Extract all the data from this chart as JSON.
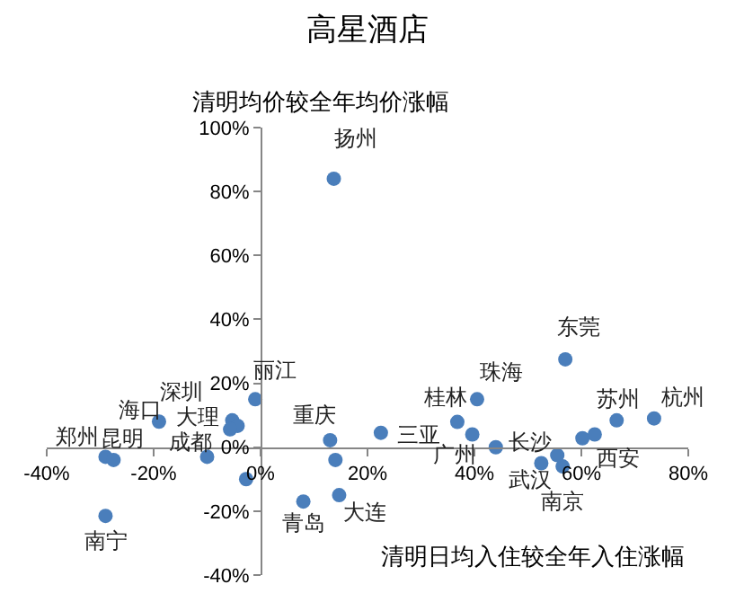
{
  "chart_data": {
    "type": "scatter",
    "title": "高星酒店",
    "xlabel": "清明日均入住较全年入住涨幅",
    "ylabel": "清明均价较全年均价涨幅",
    "x": [
      13.7,
      -29,
      -27.5,
      -29,
      -19,
      -5.3,
      -4.3,
      -10,
      -1,
      13,
      8,
      14.7,
      22.5,
      39.6,
      36.8,
      40.5,
      44,
      57,
      52.5,
      56.5,
      62.5,
      66.6,
      73.6,
      -5.7,
      -2.7,
      14,
      55.5,
      60.2
    ],
    "values": [
      84,
      -3,
      -4,
      -21.5,
      8,
      8.4,
      6.7,
      -3,
      15,
      2.2,
      -17,
      -15,
      4.5,
      4,
      7.9,
      15,
      0,
      27.5,
      -5,
      -6,
      4,
      8.4,
      9,
      5.6,
      -10,
      -4,
      -2.5,
      2.8
    ],
    "color": "#4a7ebb",
    "marker": "circle",
    "xlim": [
      -40,
      80
    ],
    "ylim": [
      -40,
      100
    ],
    "xticks": [
      {
        "value": -40,
        "label": "-40%"
      },
      {
        "value": -20,
        "label": "-20%"
      },
      {
        "value": 0,
        "label": "0%"
      },
      {
        "value": 20,
        "label": "20%"
      },
      {
        "value": 40,
        "label": "40%"
      },
      {
        "value": 60,
        "label": "60%"
      },
      {
        "value": 80,
        "label": "80%"
      }
    ],
    "yticks": [
      {
        "value": -40,
        "label": "-40%"
      },
      {
        "value": -20,
        "label": "-20%"
      },
      {
        "value": 0,
        "label": "0%"
      },
      {
        "value": 20,
        "label": "20%"
      },
      {
        "value": 40,
        "label": "40%"
      },
      {
        "value": 60,
        "label": "60%"
      },
      {
        "value": 80,
        "label": "80%"
      },
      {
        "value": 100,
        "label": "100%"
      }
    ],
    "grid": false,
    "annotations": [
      {
        "text": "扬州",
        "x": 13.7,
        "y": 84
      },
      {
        "text": "郑州",
        "x": -29,
        "y": -3
      },
      {
        "text": "昆明",
        "x": -27.5,
        "y": -4
      },
      {
        "text": "南宁",
        "x": -29,
        "y": -21.5
      },
      {
        "text": "海口",
        "x": -19,
        "y": 8
      },
      {
        "text": "深圳",
        "x": -5.3,
        "y": 8.4
      },
      {
        "text": "大理",
        "x": -4.3,
        "y": 6.7
      },
      {
        "text": "成都",
        "x": -10,
        "y": -3
      },
      {
        "text": "丽江",
        "x": -1,
        "y": 15
      },
      {
        "text": "重庆",
        "x": 13,
        "y": 2.2
      },
      {
        "text": "青岛",
        "x": 8,
        "y": -17
      },
      {
        "text": "大连",
        "x": 14.7,
        "y": -15
      },
      {
        "text": "三亚",
        "x": 22.5,
        "y": 4.5
      },
      {
        "text": "广州",
        "x": 39.6,
        "y": 4
      },
      {
        "text": "桂林",
        "x": 36.8,
        "y": 7.9
      },
      {
        "text": "珠海",
        "x": 40.5,
        "y": 15
      },
      {
        "text": "长沙",
        "x": 44,
        "y": 0
      },
      {
        "text": "东莞",
        "x": 57,
        "y": 27.5
      },
      {
        "text": "武汉",
        "x": 52.5,
        "y": -5
      },
      {
        "text": "南京",
        "x": 56.5,
        "y": -6
      },
      {
        "text": "西安",
        "x": 62.5,
        "y": 4
      },
      {
        "text": "苏州",
        "x": 66.6,
        "y": 8.4
      },
      {
        "text": "杭州",
        "x": 73.6,
        "y": 9
      }
    ]
  }
}
